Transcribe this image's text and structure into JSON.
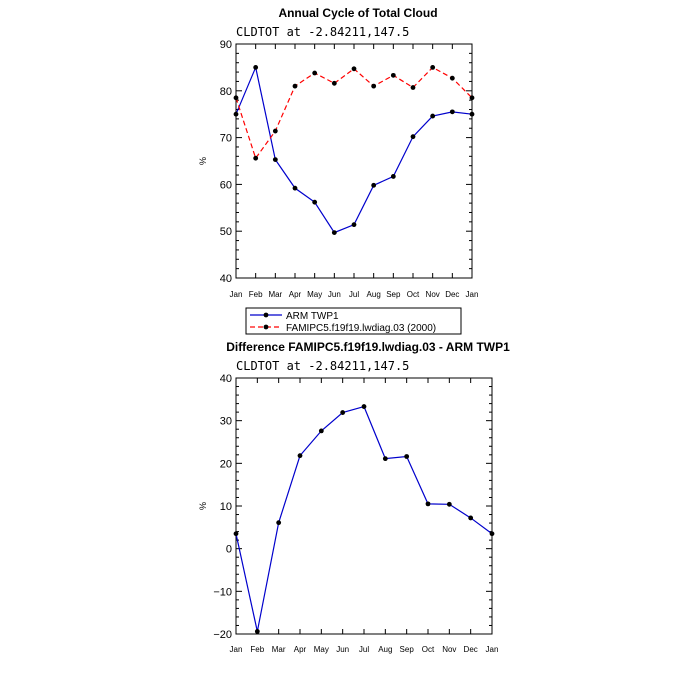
{
  "chart_data": [
    {
      "type": "line",
      "title": "Annual Cycle of Total Cloud",
      "subtitle": "CLDTOT at -2.84211,147.5",
      "ylabel": "%",
      "categories": [
        "Jan",
        "Feb",
        "Mar",
        "Apr",
        "May",
        "Jun",
        "Jul",
        "Aug",
        "Sep",
        "Oct",
        "Nov",
        "Dec",
        "Jan"
      ],
      "ylim": [
        40,
        90
      ],
      "yticks": [
        40,
        50,
        60,
        70,
        80,
        90
      ],
      "legend_position": "below",
      "series": [
        {
          "name": "ARM TWP1",
          "color": "#0000cc",
          "dash": "solid",
          "values": [
            75,
            85,
            65.3,
            59.2,
            56.2,
            49.7,
            51.4,
            59.8,
            61.7,
            70.2,
            74.6,
            75.5,
            75
          ]
        },
        {
          "name": "FAMIPC5.f19f19.lwdiag.03 (2000)",
          "color": "#ff0000",
          "dash": "dashed",
          "values": [
            78.5,
            65.6,
            71.4,
            81.0,
            83.8,
            81.6,
            84.7,
            81.0,
            83.3,
            80.7,
            85.0,
            82.7,
            78.5
          ]
        }
      ]
    },
    {
      "type": "line",
      "title": "Difference FAMIPC5.f19f19.lwdiag.03 - ARM TWP1",
      "subtitle": "CLDTOT at -2.84211,147.5",
      "ylabel": "%",
      "categories": [
        "Jan",
        "Feb",
        "Mar",
        "Apr",
        "May",
        "Jun",
        "Jul",
        "Aug",
        "Sep",
        "Oct",
        "Nov",
        "Dec",
        "Jan"
      ],
      "ylim": [
        -20,
        40
      ],
      "yticks": [
        -20,
        -10,
        0,
        10,
        20,
        30,
        40
      ],
      "series": [
        {
          "color": "#0000cc",
          "dash": "solid",
          "values": [
            3.5,
            -19.4,
            6.1,
            21.8,
            27.6,
            31.9,
            33.3,
            21.1,
            21.6,
            10.5,
            10.4,
            7.2,
            3.5
          ]
        }
      ]
    }
  ]
}
